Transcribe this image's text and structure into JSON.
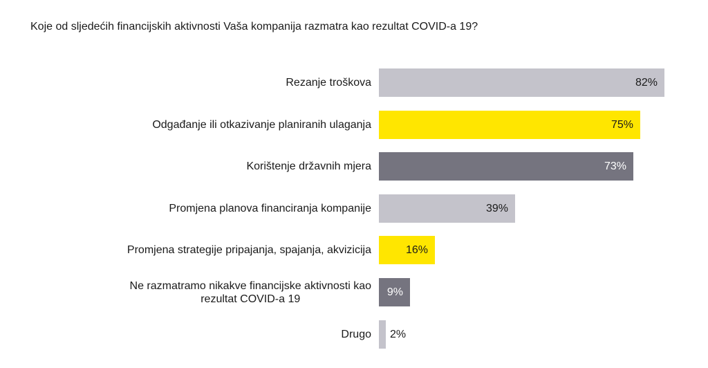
{
  "title": "Koje od sljedećih financijskih aktivnosti Vaša kompanija razmatra kao rezultat COVID-a 19?",
  "colors": {
    "light_gray": "#c4c3cb",
    "yellow": "#ffe600",
    "dark_gray": "#75747f"
  },
  "chart_data": {
    "type": "bar",
    "orientation": "horizontal",
    "title": "Koje od sljedećih financijskih aktivnosti Vaša kompanija razmatra kao rezultat COVID-a 19?",
    "categories": [
      "Rezanje troškova",
      "Odgađanje ili otkazivanje planiranih ulaganja",
      "Korištenje državnih mjera",
      "Promjena planova financiranja kompanije",
      "Promjena strategije pripajanja, spajanja, akvizicija",
      "Ne razmatramo nikakve financijske aktivnosti kao rezultat COVID-a 19",
      "Drugo"
    ],
    "values": [
      82,
      75,
      73,
      39,
      16,
      9,
      2
    ],
    "unit": "%",
    "xlabel": "",
    "ylabel": "",
    "xlim": [
      0,
      100
    ],
    "grid": false,
    "legend": null
  },
  "rows": [
    {
      "label_line1": "Rezanje troškova",
      "label_line2": "",
      "value": 82,
      "value_label": "82%",
      "color": "#c4c3cb",
      "text_color": "#1a1a1a",
      "value_inside": true
    },
    {
      "label_line1": "Odgađanje ili otkazivanje planiranih ulaganja",
      "label_line2": "",
      "value": 75,
      "value_label": "75%",
      "color": "#ffe600",
      "text_color": "#1a1a1a",
      "value_inside": true
    },
    {
      "label_line1": "Korištenje državnih mjera",
      "label_line2": "",
      "value": 73,
      "value_label": "73%",
      "color": "#75747f",
      "text_color": "#ffffff",
      "value_inside": true
    },
    {
      "label_line1": "Promjena planova financiranja kompanije",
      "label_line2": "",
      "value": 39,
      "value_label": "39%",
      "color": "#c4c3cb",
      "text_color": "#1a1a1a",
      "value_inside": true
    },
    {
      "label_line1": "Promjena strategije pripajanja, spajanja, akvizicija",
      "label_line2": "",
      "value": 16,
      "value_label": "16%",
      "color": "#ffe600",
      "text_color": "#1a1a1a",
      "value_inside": true
    },
    {
      "label_line1": "Ne razmatramo nikakve financijske aktivnosti kao",
      "label_line2": "rezultat COVID-a 19",
      "value": 9,
      "value_label": "9%",
      "color": "#75747f",
      "text_color": "#ffffff",
      "value_inside": true
    },
    {
      "label_line1": "Drugo",
      "label_line2": "",
      "value": 2,
      "value_label": "2%",
      "color": "#c4c3cb",
      "text_color": "#1a1a1a",
      "value_inside": false
    }
  ]
}
